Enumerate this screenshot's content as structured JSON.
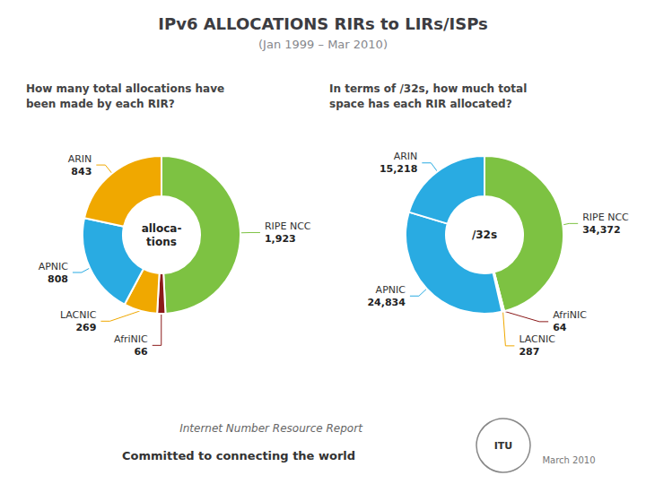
{
  "title": "IPv6 ALLOCATIONS RIRs to LIRs/ISPs",
  "subtitle": "(Jan 1999 – Mar 2010)",
  "annotations": [
    "Internet Number Resource Report",
    "Committed to connecting the world",
    "March 2010",
    "ITU"
  ],
  "chart_data": [
    {
      "type": "pie",
      "title": "How many total allocations have\nbeen made by each RIR?",
      "categories": [
        "RIPE NCC",
        "AfriNIC",
        "LACNIC",
        "APNIC",
        "ARIN"
      ],
      "values": [
        1923,
        66,
        269,
        808,
        843
      ],
      "value_labels": [
        "1,923",
        "66",
        "269",
        "808",
        "843"
      ],
      "colors": [
        "#7dc242",
        "#8b1a1a",
        "#f0a800",
        "#29abe2",
        "#f0a800"
      ],
      "annotations": [
        "alloca-\ntions"
      ],
      "data_labels": true
    },
    {
      "type": "pie",
      "title": "In terms of /32s, how much total\nspace has each RIR allocated?",
      "categories": [
        "RIPE NCC",
        "AfriNIC",
        "LACNIC",
        "APNIC",
        "ARIN"
      ],
      "values": [
        34372,
        64,
        287,
        24834,
        15218
      ],
      "value_labels": [
        "34,372",
        "64",
        "287",
        "24,834",
        "15,218"
      ],
      "colors": [
        "#7dc242",
        "#8b1a1a",
        "#f0a800",
        "#29abe2",
        "#29abe2"
      ],
      "annotations": [
        "/32s"
      ],
      "data_labels": true
    }
  ]
}
